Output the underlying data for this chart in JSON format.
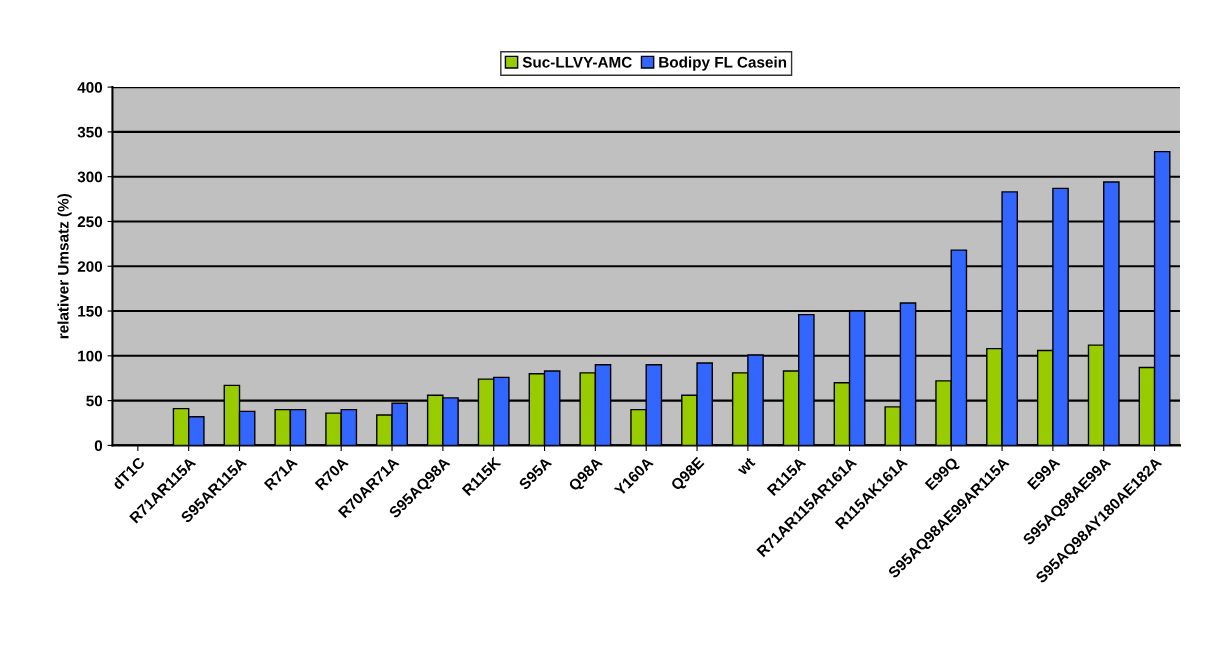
{
  "chart_data": {
    "type": "bar",
    "ylabel": "relativer Umsatz (%)",
    "categories": [
      "dT1C",
      "R71AR115A",
      "S95AR115A",
      "R71A",
      "R70A",
      "R70AR71A",
      "S95AQ98A",
      "R115K",
      "S95A",
      "Q98A",
      "Y160A",
      "Q98E",
      "wt",
      "R115A",
      "R71AR115AR161A",
      "R115AK161A",
      "E99Q",
      "S95AQ98AE99AR115A",
      "E99A",
      "S95AQ98AE99A",
      "S95AQ98AY180AE182A"
    ],
    "series": [
      {
        "name": "Suc-LLVY-AMC",
        "color": "#99cc00",
        "values": [
          null,
          41,
          67,
          40,
          36,
          34,
          56,
          74,
          80,
          81,
          40,
          56,
          81,
          83,
          70,
          43,
          72,
          108,
          106,
          112,
          87
        ]
      },
      {
        "name": "Bodipy FL Casein",
        "color": "#3366ff",
        "values": [
          null,
          32,
          38,
          40,
          40,
          47,
          53,
          76,
          83,
          90,
          90,
          92,
          101,
          146,
          150,
          159,
          218,
          283,
          287,
          294,
          328
        ]
      }
    ],
    "ylim": [
      0,
      400
    ],
    "yticks": [
      0,
      50,
      100,
      150,
      200,
      250,
      300,
      350,
      400
    ],
    "grid": "y",
    "legend": "top"
  }
}
